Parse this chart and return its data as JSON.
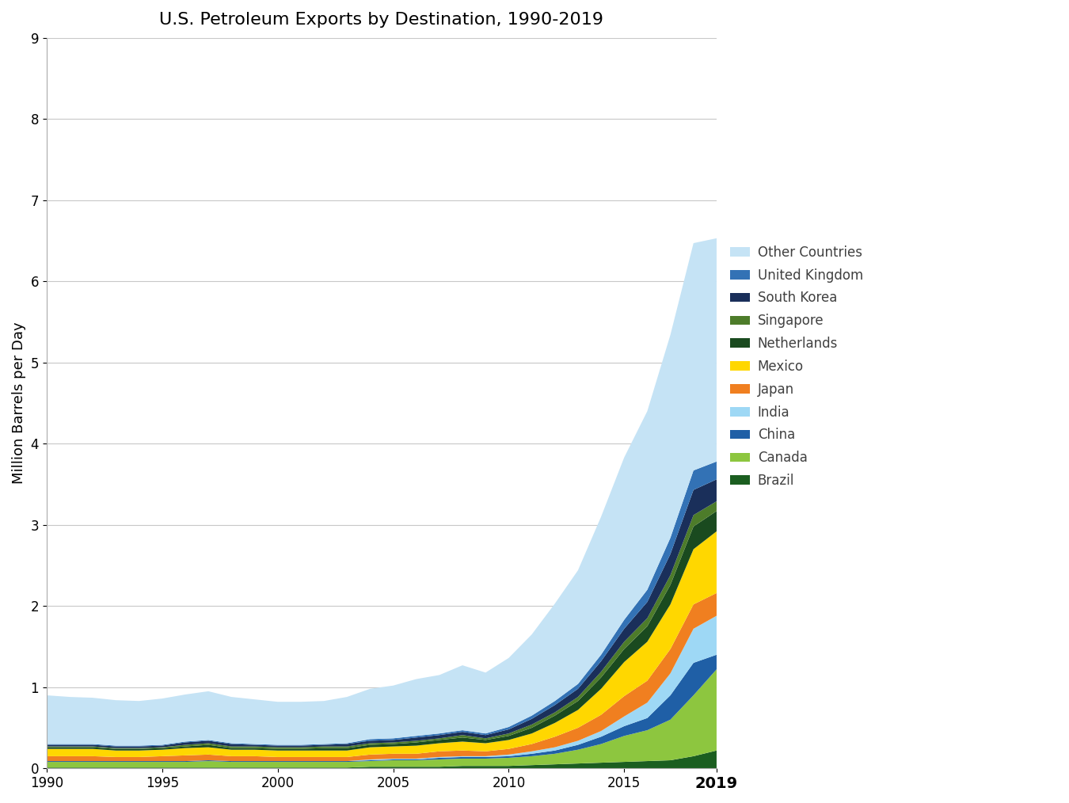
{
  "title": "U.S. Petroleum Exports by Destination, 1990-2019",
  "ylabel": "Million Barrels per Day",
  "years": [
    1990,
    1991,
    1992,
    1993,
    1994,
    1995,
    1996,
    1997,
    1998,
    1999,
    2000,
    2001,
    2002,
    2003,
    2004,
    2005,
    2006,
    2007,
    2008,
    2009,
    2010,
    2011,
    2012,
    2013,
    2014,
    2015,
    2016,
    2017,
    2018,
    2019
  ],
  "series": {
    "Brazil": [
      0.01,
      0.01,
      0.01,
      0.01,
      0.01,
      0.01,
      0.01,
      0.01,
      0.01,
      0.01,
      0.01,
      0.01,
      0.01,
      0.01,
      0.02,
      0.02,
      0.02,
      0.02,
      0.03,
      0.03,
      0.03,
      0.04,
      0.05,
      0.06,
      0.07,
      0.08,
      0.09,
      0.1,
      0.15,
      0.22
    ],
    "Canada": [
      0.07,
      0.07,
      0.07,
      0.07,
      0.07,
      0.07,
      0.07,
      0.08,
      0.07,
      0.07,
      0.07,
      0.07,
      0.07,
      0.07,
      0.07,
      0.08,
      0.08,
      0.09,
      0.09,
      0.09,
      0.1,
      0.11,
      0.13,
      0.17,
      0.23,
      0.32,
      0.38,
      0.5,
      0.75,
      1.0
    ],
    "China": [
      0.01,
      0.01,
      0.01,
      0.01,
      0.01,
      0.01,
      0.01,
      0.01,
      0.01,
      0.01,
      0.01,
      0.01,
      0.01,
      0.01,
      0.01,
      0.01,
      0.01,
      0.02,
      0.02,
      0.02,
      0.02,
      0.03,
      0.04,
      0.06,
      0.09,
      0.12,
      0.15,
      0.3,
      0.4,
      0.18
    ],
    "India": [
      0.0,
      0.0,
      0.0,
      0.0,
      0.0,
      0.0,
      0.0,
      0.0,
      0.0,
      0.0,
      0.0,
      0.0,
      0.0,
      0.0,
      0.01,
      0.01,
      0.01,
      0.01,
      0.01,
      0.01,
      0.02,
      0.03,
      0.04,
      0.05,
      0.07,
      0.12,
      0.19,
      0.27,
      0.42,
      0.48
    ],
    "Japan": [
      0.06,
      0.06,
      0.06,
      0.05,
      0.05,
      0.06,
      0.07,
      0.07,
      0.06,
      0.06,
      0.05,
      0.05,
      0.05,
      0.05,
      0.06,
      0.06,
      0.06,
      0.07,
      0.07,
      0.06,
      0.07,
      0.09,
      0.13,
      0.16,
      0.2,
      0.25,
      0.27,
      0.3,
      0.3,
      0.28
    ],
    "Mexico": [
      0.09,
      0.09,
      0.09,
      0.08,
      0.08,
      0.08,
      0.09,
      0.09,
      0.08,
      0.08,
      0.08,
      0.08,
      0.08,
      0.08,
      0.09,
      0.09,
      0.1,
      0.1,
      0.11,
      0.1,
      0.11,
      0.13,
      0.17,
      0.22,
      0.32,
      0.42,
      0.48,
      0.55,
      0.68,
      0.76
    ],
    "Netherlands": [
      0.02,
      0.02,
      0.02,
      0.02,
      0.02,
      0.02,
      0.02,
      0.03,
      0.02,
      0.02,
      0.02,
      0.02,
      0.03,
      0.03,
      0.03,
      0.03,
      0.04,
      0.04,
      0.05,
      0.04,
      0.05,
      0.07,
      0.09,
      0.11,
      0.14,
      0.16,
      0.19,
      0.24,
      0.28,
      0.25
    ],
    "Singapore": [
      0.01,
      0.01,
      0.01,
      0.01,
      0.01,
      0.01,
      0.02,
      0.02,
      0.02,
      0.02,
      0.02,
      0.02,
      0.02,
      0.02,
      0.02,
      0.02,
      0.02,
      0.02,
      0.03,
      0.02,
      0.03,
      0.04,
      0.04,
      0.05,
      0.07,
      0.09,
      0.1,
      0.12,
      0.14,
      0.12
    ],
    "South Korea": [
      0.02,
      0.02,
      0.02,
      0.02,
      0.02,
      0.02,
      0.03,
      0.03,
      0.03,
      0.02,
      0.02,
      0.02,
      0.02,
      0.03,
      0.03,
      0.03,
      0.04,
      0.04,
      0.04,
      0.04,
      0.05,
      0.07,
      0.09,
      0.1,
      0.13,
      0.16,
      0.2,
      0.26,
      0.31,
      0.27
    ],
    "United Kingdom": [
      0.01,
      0.01,
      0.01,
      0.01,
      0.01,
      0.01,
      0.01,
      0.01,
      0.01,
      0.01,
      0.01,
      0.01,
      0.01,
      0.01,
      0.02,
      0.02,
      0.02,
      0.02,
      0.02,
      0.02,
      0.03,
      0.04,
      0.05,
      0.06,
      0.08,
      0.11,
      0.15,
      0.2,
      0.24,
      0.22
    ],
    "Other Countries": [
      0.6,
      0.58,
      0.57,
      0.56,
      0.55,
      0.57,
      0.58,
      0.6,
      0.57,
      0.55,
      0.53,
      0.53,
      0.53,
      0.57,
      0.62,
      0.65,
      0.7,
      0.72,
      0.8,
      0.75,
      0.85,
      1.0,
      1.2,
      1.4,
      1.7,
      2.0,
      2.2,
      2.5,
      2.8,
      2.75
    ]
  },
  "colors": {
    "Brazil": "#1b5e20",
    "Canada": "#8dc63f",
    "China": "#1f5fa6",
    "India": "#9ed8f5",
    "Japan": "#f07f20",
    "Mexico": "#ffd700",
    "Netherlands": "#1a4a1f",
    "Singapore": "#4d7c2a",
    "South Korea": "#1a2f5a",
    "United Kingdom": "#3372b5",
    "Other Countries": "#c5e3f5"
  },
  "stack_order": [
    "Brazil",
    "Canada",
    "China",
    "India",
    "Japan",
    "Mexico",
    "Netherlands",
    "Singapore",
    "South Korea",
    "United Kingdom",
    "Other Countries"
  ],
  "legend_order": [
    "Other Countries",
    "United Kingdom",
    "South Korea",
    "Singapore",
    "Netherlands",
    "Mexico",
    "Japan",
    "India",
    "China",
    "Canada",
    "Brazil"
  ],
  "ylim": [
    0,
    9
  ],
  "yticks": [
    0,
    1,
    2,
    3,
    4,
    5,
    6,
    7,
    8,
    9
  ],
  "title_fontsize": 16,
  "axis_label_fontsize": 13,
  "tick_fontsize": 12,
  "legend_fontsize": 12,
  "background_color": "#ffffff"
}
